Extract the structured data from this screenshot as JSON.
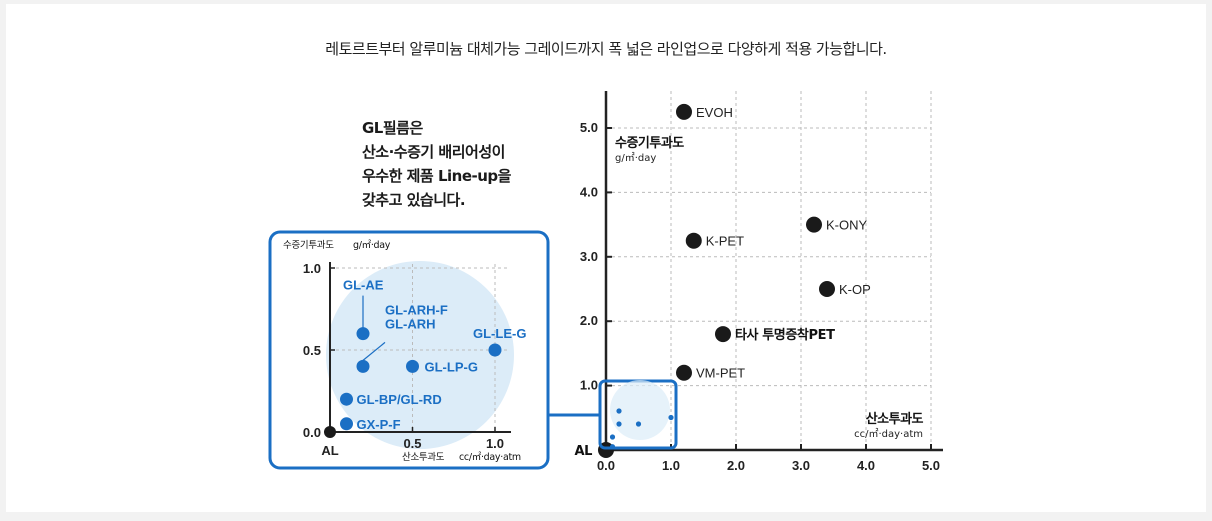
{
  "headline": "레토르트부터 알루미늄 대체가능 그레이드까지 폭 넓은 라인업으로 다양하게 적용 가능합니다.",
  "note": [
    "GL필름은",
    "산소·수증기 배리어성이",
    "우수한 제품 Line-up을",
    "갖추고 있습니다."
  ],
  "colors": {
    "accent": "#1b6fc4",
    "point": "#1a1a1a",
    "grid": "#bbbbbb",
    "bubble": "#dcecf8"
  },
  "chart_data": [
    {
      "type": "scatter",
      "name": "main",
      "ylabel": "수증기투과도",
      "ylabel_unit": "g/㎡·day",
      "xlabel": "산소투과도",
      "xlabel_unit": "cc/㎡·day·atm",
      "xlim": [
        0,
        5.0
      ],
      "ylim": [
        0,
        5.0
      ],
      "xticks": [
        "0.0",
        "1.0",
        "2.0",
        "3.0",
        "4.0",
        "5.0"
      ],
      "yticks": [
        "1.0",
        "2.0",
        "3.0",
        "4.0",
        "5.0"
      ],
      "grid": true,
      "points": [
        {
          "label": "EVOH",
          "x": 1.2,
          "y": 5.25
        },
        {
          "label": "K-ONY",
          "x": 3.2,
          "y": 3.5
        },
        {
          "label": "K-PET",
          "x": 1.35,
          "y": 3.25
        },
        {
          "label": "K-OP",
          "x": 3.4,
          "y": 2.5
        },
        {
          "label": "타사 투명증착PET",
          "x": 1.8,
          "y": 1.8
        },
        {
          "label": "VM-PET",
          "x": 1.2,
          "y": 1.2
        },
        {
          "label": "AL",
          "x": 0,
          "y": 0
        }
      ]
    },
    {
      "type": "scatter",
      "name": "inset",
      "ylabel": "수증기투과도",
      "ylabel_unit": "g/㎡·day",
      "xlabel": "산소투과도",
      "xlabel_unit": "cc/㎡·day·atm",
      "xlim": [
        0,
        1.0
      ],
      "ylim": [
        0,
        1.0
      ],
      "xticks": [
        "0.5",
        "1.0"
      ],
      "yticks": [
        "0.0",
        "0.5",
        "1.0"
      ],
      "grid": true,
      "points": [
        {
          "label": "GL-AE",
          "x": 0.2,
          "y": 0.6
        },
        {
          "label": "GL-ARH-F GL-ARH",
          "x": 0.2,
          "y": 0.4
        },
        {
          "label": "GL-LP-G",
          "x": 0.5,
          "y": 0.4
        },
        {
          "label": "GL-LE-G",
          "x": 1.0,
          "y": 0.5
        },
        {
          "label": "GL-BP/GL-RD",
          "x": 0.1,
          "y": 0.2
        },
        {
          "label": "GX-P-F",
          "x": 0.1,
          "y": 0.05
        },
        {
          "label": "AL",
          "x": 0,
          "y": 0
        }
      ]
    }
  ]
}
